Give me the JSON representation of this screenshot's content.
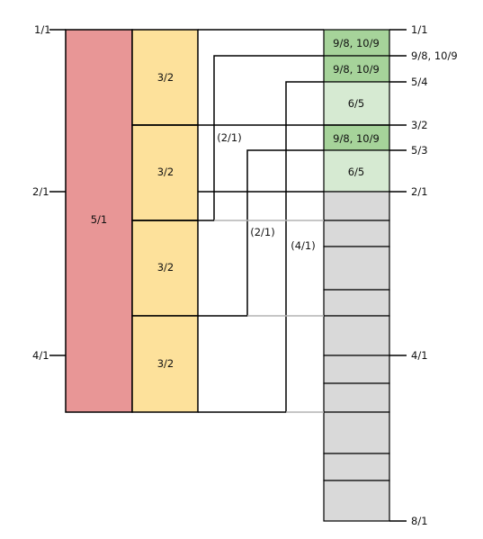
{
  "colors": {
    "red": "#e89696",
    "yellow": "#fde19b",
    "dark_green": "#a6d39a",
    "light_green": "#d6ead2",
    "gray": "#d9d9d9",
    "line": "#000000",
    "gray_line": "#b3b3b3"
  },
  "left_labels": {
    "top": "1/1",
    "mid": "2/1",
    "low": "4/1"
  },
  "red_bar": {
    "label": "5/1"
  },
  "yellow_cells": [
    "3/2",
    "3/2",
    "3/2",
    "3/2"
  ],
  "green_cells": [
    "9/8, 10/9",
    "9/8, 10/9",
    "6/5",
    "9/8, 10/9",
    "6/5"
  ],
  "inner_labels": {
    "a": "(2/1)",
    "b": "(2/1)",
    "c": "(4/1)"
  },
  "right_labels": [
    "1/1",
    "9/8, 10/9",
    "5/4",
    "3/2",
    "5/3",
    "2/1",
    "4/1",
    "8/1"
  ]
}
